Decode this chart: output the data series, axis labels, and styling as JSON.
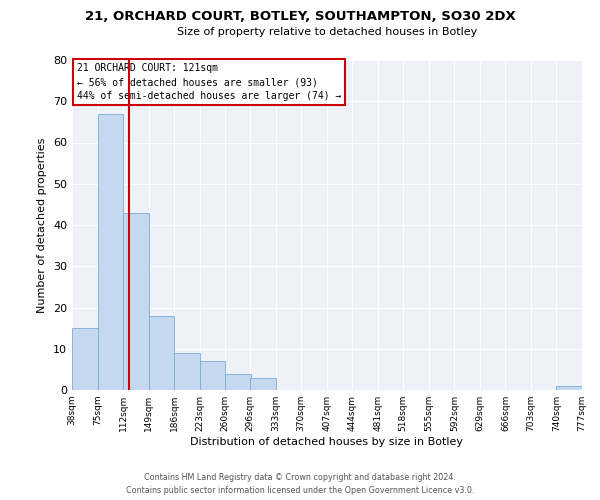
{
  "title": "21, ORCHARD COURT, BOTLEY, SOUTHAMPTON, SO30 2DX",
  "subtitle": "Size of property relative to detached houses in Botley",
  "xlabel": "Distribution of detached houses by size in Botley",
  "ylabel": "Number of detached properties",
  "bin_edges": [
    38,
    75,
    112,
    149,
    186,
    223,
    260,
    296,
    333,
    370,
    407,
    444,
    481,
    518,
    555,
    592,
    629,
    666,
    703,
    740,
    777
  ],
  "counts": [
    15,
    67,
    43,
    18,
    9,
    7,
    4,
    3,
    0,
    0,
    0,
    0,
    0,
    0,
    0,
    0,
    0,
    0,
    0,
    1
  ],
  "red_line_x": 121,
  "bar_color": "#c5d8f0",
  "bar_edge_color": "#7aadd4",
  "line_color": "#cc0000",
  "annotation_text": "21 ORCHARD COURT: 121sqm\n← 56% of detached houses are smaller (93)\n44% of semi-detached houses are larger (74) →",
  "annotation_box_edge": "#cc0000",
  "ylim": [
    0,
    80
  ],
  "footer_line1": "Contains HM Land Registry data © Crown copyright and database right 2024.",
  "footer_line2": "Contains public sector information licensed under the Open Government Licence v3.0.",
  "tick_labels": [
    "38sqm",
    "75sqm",
    "112sqm",
    "149sqm",
    "186sqm",
    "223sqm",
    "260sqm",
    "296sqm",
    "333sqm",
    "370sqm",
    "407sqm",
    "444sqm",
    "481sqm",
    "518sqm",
    "555sqm",
    "592sqm",
    "629sqm",
    "666sqm",
    "703sqm",
    "740sqm",
    "777sqm"
  ],
  "background_color": "#eef2f8"
}
